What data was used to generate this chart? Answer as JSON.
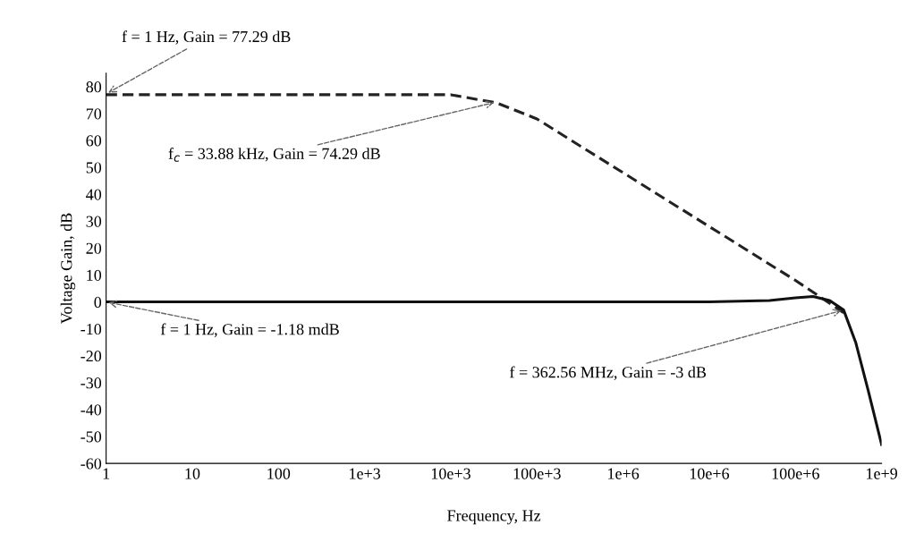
{
  "chart_data": {
    "type": "line",
    "xlabel": "Frequency, Hz",
    "ylabel": "Voltage Gain, dB",
    "log": "x",
    "xlim": [
      1,
      1000000000
    ],
    "xticks": [
      {
        "value": 1,
        "label": "1"
      },
      {
        "value": 10,
        "label": "10"
      },
      {
        "value": 100,
        "label": "100"
      },
      {
        "value": 1000,
        "label": "1e+3"
      },
      {
        "value": 10000,
        "label": "10e+3"
      },
      {
        "value": 100000,
        "label": "100e+3"
      },
      {
        "value": 1000000,
        "label": "1e+6"
      },
      {
        "value": 10000000,
        "label": "10e+6"
      },
      {
        "value": 100000000,
        "label": "100e+6"
      },
      {
        "value": 1000000000,
        "label": "1e+9"
      }
    ],
    "ylim": [
      -60,
      85
    ],
    "yticks": [
      -60,
      -50,
      -40,
      -30,
      -20,
      -10,
      0,
      10,
      20,
      30,
      40,
      50,
      60,
      70,
      80
    ],
    "grid": false,
    "marker": "none",
    "series": [
      {
        "color": "#222222",
        "line_style": "dashed",
        "x": [
          1,
          1000,
          10000,
          33880,
          100000,
          1000000,
          10000000,
          100000000,
          362560000
        ],
        "values": [
          77,
          77,
          77,
          74,
          68,
          48,
          28,
          8,
          -4
        ]
      },
      {
        "color": "#111111",
        "line_style": "solid",
        "x": [
          1,
          10000000,
          50000000,
          100000000,
          160000000,
          250000000,
          362560000,
          500000000,
          700000000,
          1000000000
        ],
        "values": [
          0,
          0,
          0.5,
          1.5,
          2,
          0.5,
          -3,
          -15,
          -33,
          -53
        ]
      }
    ],
    "annotations": [
      {
        "text": "f = 1 Hz, Gain = 77.29 dB",
        "x": 1,
        "y": 77.29
      },
      {
        "text": "f$_{c}$ = 33.88 kHz, Gain = 74.29 dB",
        "x": 33880,
        "y": 74.29
      },
      {
        "text": "f = 1 Hz, Gain = -1.18 mdB",
        "x": 1,
        "y": -0.00118
      },
      {
        "text": "f = 362.56 MHz, Gain = -3 dB",
        "x": 362560000,
        "y": -3
      }
    ]
  }
}
